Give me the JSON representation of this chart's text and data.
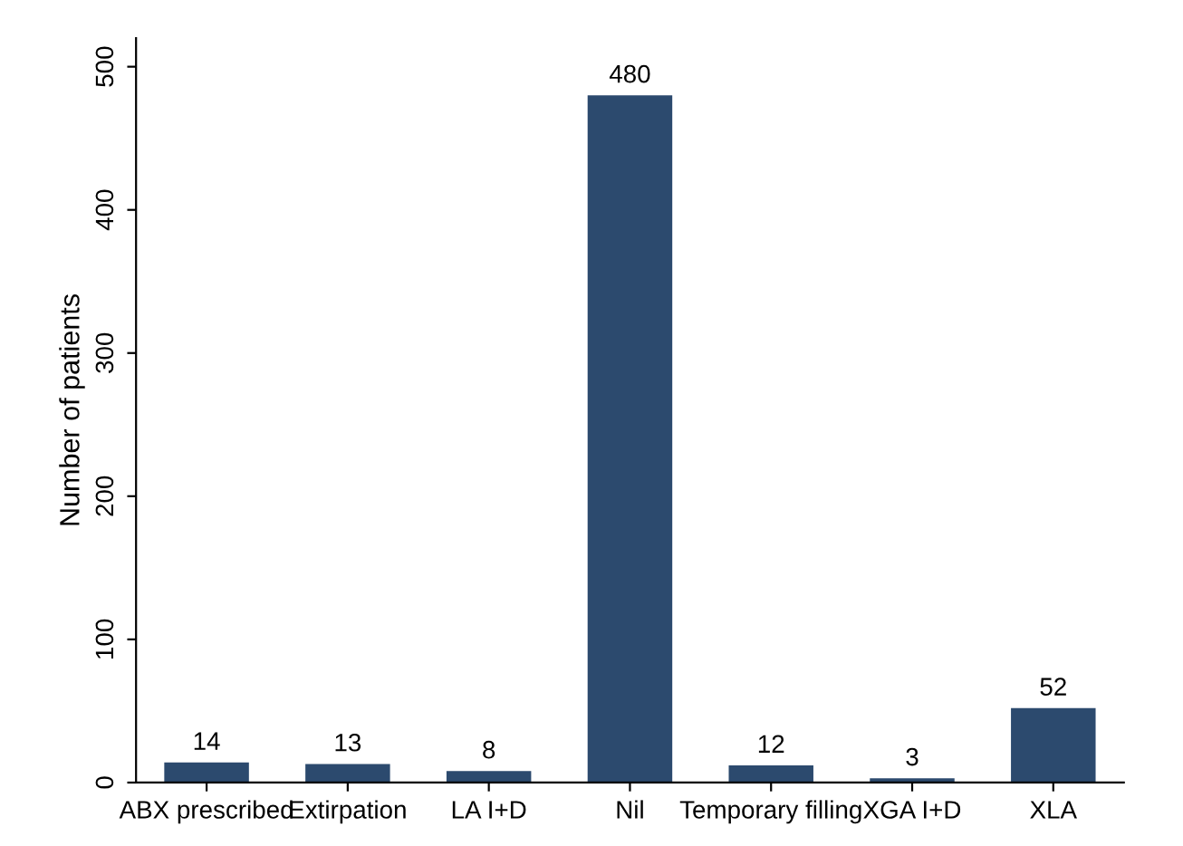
{
  "chart_data": {
    "type": "bar",
    "ylabel": "Number of patients",
    "categories": [
      "ABX prescribed",
      "Extirpation",
      "LA I+D",
      "Nil",
      "Temporary filling",
      "XGA I+D",
      "XLA"
    ],
    "values": [
      14,
      13,
      8,
      480,
      12,
      3,
      52
    ],
    "color": "#2c4a6e",
    "ylim": [
      0,
      520
    ],
    "yticks": [
      0,
      100,
      200,
      300,
      400,
      500
    ],
    "grid": false,
    "data_labels": true
  }
}
